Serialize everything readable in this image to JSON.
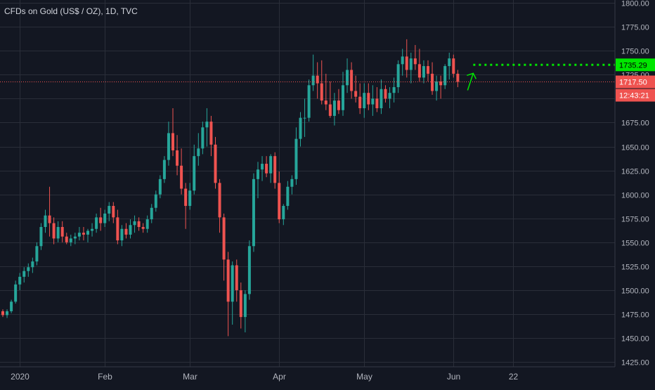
{
  "chart_data": {
    "type": "candlestick",
    "title": "CFDs on Gold (US$ / OZ), 1D, TVC",
    "ylim": [
      1420,
      1803
    ],
    "y_ticks": [
      1425,
      1450,
      1475,
      1500,
      1525,
      1550,
      1575,
      1600,
      1625,
      1650,
      1675,
      1700,
      1725,
      1750,
      1775,
      1800
    ],
    "y_tick_labels": [
      "1425.00",
      "1450.00",
      "1475.00",
      "1500.00",
      "1525.00",
      "1550.00",
      "1575.00",
      "1600.00",
      "1625.00",
      "1650.00",
      "1675.00",
      "1700.00",
      "1725.00",
      "1750.00",
      "1775.00",
      "1800.00"
    ],
    "x_ticks": [
      {
        "label": "2020",
        "bar": 4
      },
      {
        "label": "Feb",
        "bar": 24
      },
      {
        "label": "Mar",
        "bar": 44
      },
      {
        "label": "Apr",
        "bar": 65
      },
      {
        "label": "May",
        "bar": 85
      },
      {
        "label": "Jun",
        "bar": 106
      },
      {
        "label": "22",
        "bar": 120
      }
    ],
    "candles": [
      [
        1478,
        1480,
        1472,
        1474
      ],
      [
        1474,
        1480,
        1471,
        1478
      ],
      [
        1478,
        1490,
        1476,
        1488
      ],
      [
        1488,
        1510,
        1486,
        1506
      ],
      [
        1506,
        1518,
        1500,
        1514
      ],
      [
        1514,
        1524,
        1508,
        1520
      ],
      [
        1520,
        1528,
        1514,
        1524
      ],
      [
        1524,
        1534,
        1518,
        1530
      ],
      [
        1530,
        1550,
        1526,
        1546
      ],
      [
        1546,
        1570,
        1542,
        1566
      ],
      [
        1566,
        1584,
        1560,
        1578
      ],
      [
        1578,
        1608,
        1556,
        1570
      ],
      [
        1570,
        1576,
        1548,
        1554
      ],
      [
        1554,
        1572,
        1550,
        1566
      ],
      [
        1566,
        1572,
        1550,
        1556
      ],
      [
        1556,
        1560,
        1548,
        1550
      ],
      [
        1550,
        1558,
        1546,
        1554
      ],
      [
        1554,
        1560,
        1548,
        1556
      ],
      [
        1556,
        1566,
        1552,
        1560
      ],
      [
        1560,
        1566,
        1552,
        1558
      ],
      [
        1558,
        1564,
        1550,
        1562
      ],
      [
        1562,
        1570,
        1556,
        1564
      ],
      [
        1564,
        1580,
        1560,
        1576
      ],
      [
        1576,
        1586,
        1562,
        1570
      ],
      [
        1570,
        1584,
        1566,
        1580
      ],
      [
        1580,
        1592,
        1572,
        1588
      ],
      [
        1588,
        1592,
        1570,
        1576
      ],
      [
        1576,
        1584,
        1548,
        1552
      ],
      [
        1552,
        1568,
        1546,
        1564
      ],
      [
        1564,
        1570,
        1554,
        1558
      ],
      [
        1558,
        1574,
        1554,
        1568
      ],
      [
        1568,
        1578,
        1560,
        1572
      ],
      [
        1572,
        1576,
        1562,
        1566
      ],
      [
        1566,
        1570,
        1560,
        1564
      ],
      [
        1564,
        1578,
        1560,
        1574
      ],
      [
        1574,
        1590,
        1570,
        1586
      ],
      [
        1586,
        1604,
        1582,
        1600
      ],
      [
        1600,
        1620,
        1596,
        1616
      ],
      [
        1616,
        1640,
        1612,
        1636
      ],
      [
        1636,
        1676,
        1630,
        1664
      ],
      [
        1664,
        1690,
        1640,
        1646
      ],
      [
        1646,
        1662,
        1620,
        1630
      ],
      [
        1630,
        1648,
        1600,
        1606
      ],
      [
        1606,
        1612,
        1564,
        1588
      ],
      [
        1588,
        1612,
        1584,
        1604
      ],
      [
        1604,
        1652,
        1600,
        1640
      ],
      [
        1640,
        1664,
        1630,
        1648
      ],
      [
        1648,
        1676,
        1642,
        1670
      ],
      [
        1670,
        1690,
        1650,
        1676
      ],
      [
        1676,
        1682,
        1640,
        1652
      ],
      [
        1652,
        1660,
        1606,
        1612
      ],
      [
        1612,
        1616,
        1560,
        1576
      ],
      [
        1576,
        1580,
        1510,
        1532
      ],
      [
        1532,
        1540,
        1452,
        1488
      ],
      [
        1488,
        1530,
        1464,
        1526
      ],
      [
        1526,
        1532,
        1488,
        1500
      ],
      [
        1500,
        1508,
        1460,
        1472
      ],
      [
        1472,
        1500,
        1456,
        1496
      ],
      [
        1496,
        1552,
        1490,
        1546
      ],
      [
        1546,
        1622,
        1540,
        1616
      ],
      [
        1616,
        1634,
        1596,
        1626
      ],
      [
        1626,
        1640,
        1614,
        1632
      ],
      [
        1632,
        1640,
        1618,
        1622
      ],
      [
        1622,
        1642,
        1612,
        1640
      ],
      [
        1640,
        1644,
        1606,
        1612
      ],
      [
        1612,
        1624,
        1570,
        1574
      ],
      [
        1574,
        1590,
        1568,
        1588
      ],
      [
        1588,
        1614,
        1584,
        1608
      ],
      [
        1608,
        1620,
        1600,
        1616
      ],
      [
        1616,
        1670,
        1610,
        1658
      ],
      [
        1658,
        1686,
        1650,
        1680
      ],
      [
        1680,
        1700,
        1660,
        1680
      ],
      [
        1680,
        1720,
        1676,
        1714
      ],
      [
        1714,
        1746,
        1708,
        1724
      ],
      [
        1724,
        1738,
        1700,
        1716
      ],
      [
        1716,
        1740,
        1694,
        1698
      ],
      [
        1698,
        1726,
        1688,
        1694
      ],
      [
        1694,
        1718,
        1680,
        1682
      ],
      [
        1682,
        1706,
        1672,
        1698
      ],
      [
        1698,
        1710,
        1684,
        1688
      ],
      [
        1688,
        1728,
        1682,
        1714
      ],
      [
        1714,
        1742,
        1706,
        1730
      ],
      [
        1730,
        1738,
        1700,
        1708
      ],
      [
        1708,
        1724,
        1696,
        1702
      ],
      [
        1702,
        1716,
        1684,
        1690
      ],
      [
        1690,
        1716,
        1680,
        1706
      ],
      [
        1706,
        1716,
        1688,
        1694
      ],
      [
        1694,
        1714,
        1682,
        1700
      ],
      [
        1700,
        1712,
        1686,
        1690
      ],
      [
        1690,
        1720,
        1684,
        1710
      ],
      [
        1710,
        1714,
        1696,
        1700
      ],
      [
        1700,
        1712,
        1690,
        1706
      ],
      [
        1706,
        1722,
        1696,
        1712
      ],
      [
        1712,
        1740,
        1706,
        1736
      ],
      [
        1736,
        1752,
        1724,
        1744
      ],
      [
        1744,
        1762,
        1722,
        1730
      ],
      [
        1730,
        1748,
        1716,
        1742
      ],
      [
        1742,
        1756,
        1730,
        1736
      ],
      [
        1736,
        1752,
        1718,
        1722
      ],
      [
        1722,
        1740,
        1716,
        1734
      ],
      [
        1734,
        1740,
        1718,
        1726
      ],
      [
        1726,
        1738,
        1704,
        1708
      ],
      [
        1708,
        1724,
        1698,
        1718
      ],
      [
        1718,
        1724,
        1700,
        1714
      ],
      [
        1714,
        1736,
        1710,
        1734
      ],
      [
        1734,
        1748,
        1720,
        1742
      ],
      [
        1742,
        1746,
        1722,
        1726
      ],
      [
        1726,
        1730,
        1712,
        1717.5
      ]
    ],
    "price_lines": [
      {
        "value": 1735.29,
        "label": "1735.29",
        "kind": "target",
        "color": "#00e600"
      },
      {
        "value": 1717.5,
        "label": "1717.50",
        "kind": "last",
        "color": "#ef5350"
      }
    ],
    "countdown": "12:43:21",
    "annotation": {
      "type": "arrow-up",
      "color": "#00e600"
    },
    "colors": {
      "background": "#131722",
      "up": "#26a69a",
      "down": "#ef5350",
      "grid": "#2a2e39",
      "text": "#b2b5be",
      "target": "#00e600"
    }
  }
}
